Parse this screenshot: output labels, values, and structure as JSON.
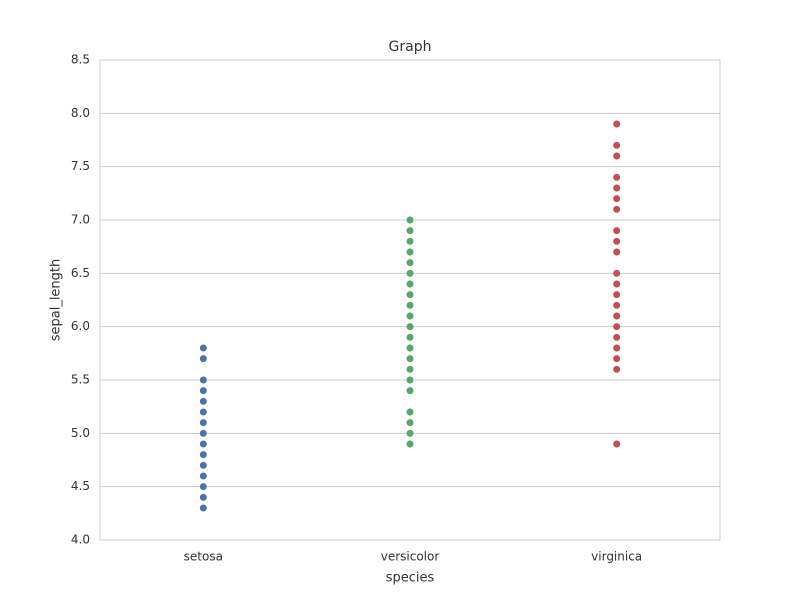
{
  "chart_data": {
    "type": "strip",
    "title": "Graph",
    "x_label": "species",
    "y_label": "sepal_length",
    "categories": [
      "setosa",
      "versicolor",
      "virginica"
    ],
    "colors": [
      "#4c72b0",
      "#55a868",
      "#c44e52"
    ],
    "values": [
      [
        4.3,
        4.4,
        4.5,
        4.6,
        4.7,
        4.8,
        4.9,
        5.0,
        5.1,
        5.2,
        5.3,
        5.4,
        5.5,
        5.7,
        5.8
      ],
      [
        4.9,
        5.0,
        5.1,
        5.2,
        5.4,
        5.5,
        5.6,
        5.7,
        5.8,
        5.9,
        6.0,
        6.1,
        6.2,
        6.3,
        6.4,
        6.5,
        6.6,
        6.7,
        6.8,
        6.9,
        7.0
      ],
      [
        4.9,
        5.6,
        5.7,
        5.8,
        5.9,
        6.0,
        6.1,
        6.2,
        6.3,
        6.4,
        6.5,
        6.7,
        6.8,
        6.9,
        7.1,
        7.2,
        7.3,
        7.4,
        7.6,
        7.7,
        7.9
      ]
    ],
    "ylim": [
      4.0,
      8.5
    ],
    "yticks": [
      {
        "value": 4,
        "label": "4.0"
      },
      4.5,
      {
        "value": 5,
        "label": "5.0"
      },
      5.5,
      {
        "value": 6,
        "label": "6.0"
      },
      6.5,
      {
        "value": 7,
        "label": "7.0"
      },
      7.5,
      {
        "value": 8,
        "label": "8.0"
      },
      8.5
    ],
    "grid": true
  }
}
